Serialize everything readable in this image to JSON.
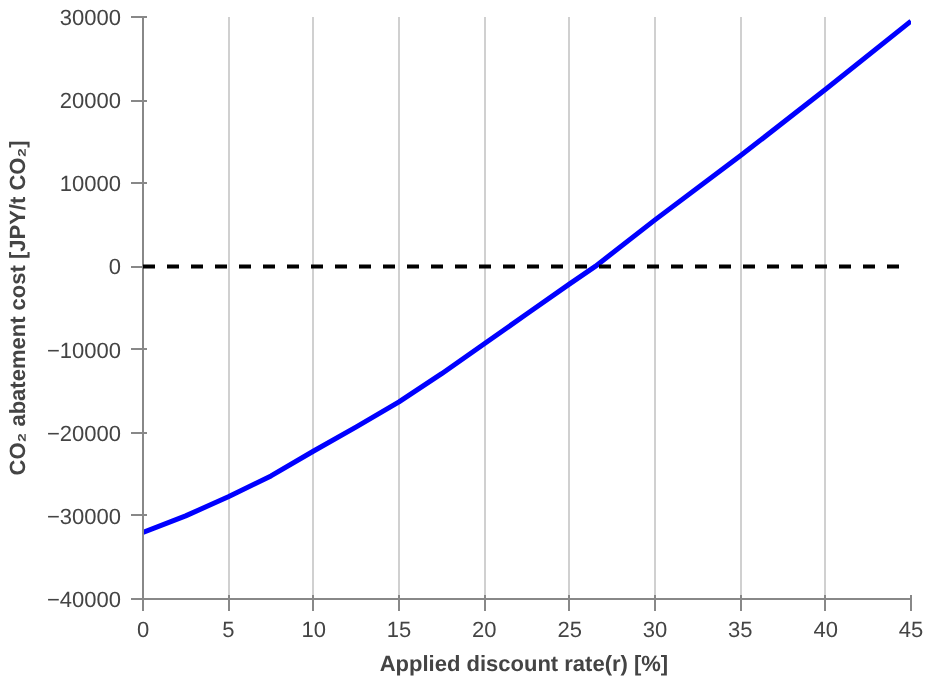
{
  "chart_data": {
    "type": "line",
    "xlabel": "Applied discount  rate(r) [%]",
    "ylabel": "CO₂ abatement cost [JPY/t CO₂]",
    "x": [
      0,
      2.5,
      5,
      7.5,
      10,
      12.5,
      15,
      17.5,
      20,
      22.5,
      25,
      26.5,
      30,
      35,
      40,
      45
    ],
    "series": [
      {
        "color": "#0000ff",
        "values": [
          -32000,
          -30000,
          -27700,
          -25200,
          -22200,
          -19300,
          -16300,
          -12900,
          -9300,
          -5700,
          -2100,
          0,
          5600,
          13300,
          21300,
          29500
        ]
      }
    ],
    "xlim": [
      0,
      45
    ],
    "xticks": [
      0,
      5,
      10,
      15,
      20,
      25,
      30,
      35,
      40,
      45
    ],
    "ylim": [
      -40000,
      30000
    ],
    "yticks": [
      -40000,
      -30000,
      -20000,
      -10000,
      0,
      10000,
      20000,
      30000
    ],
    "grid": "x",
    "line_style": "solid",
    "ref_lines": [
      {
        "axis": "y",
        "value": 0,
        "color": "#000000",
        "line_style": "dashed"
      }
    ]
  }
}
